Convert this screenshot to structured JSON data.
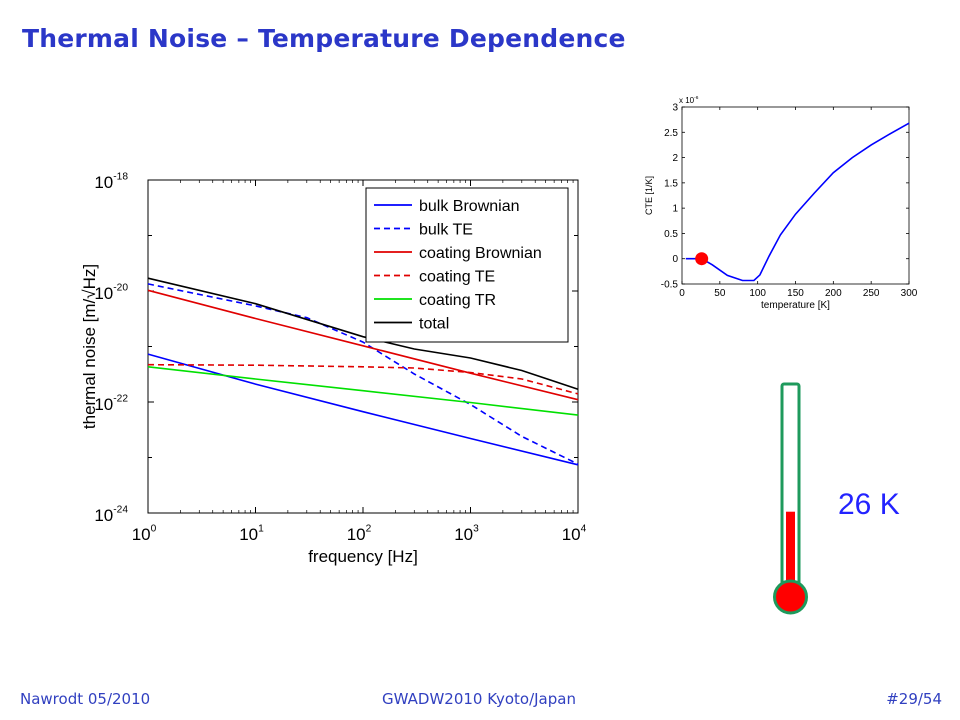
{
  "slide": {
    "title": "Thermal Noise – Temperature Dependence",
    "footer_left": "Nawrodt 05/2010",
    "footer_center": "GWADW2010 Kyoto/Japan",
    "footer_right": "#29/54",
    "temperature_label": "26 K"
  },
  "chart_data": [
    {
      "type": "line",
      "xlabel": "frequency [Hz]",
      "ylabel": "thermal noise [m/√Hz]",
      "x_scale": "log",
      "y_scale": "log",
      "xlim": [
        1,
        10000
      ],
      "ylim": [
        1e-24,
        1e-18
      ],
      "x_ticks": [
        {
          "value": 1,
          "base": "10",
          "exp": "0"
        },
        {
          "value": 10,
          "base": "10",
          "exp": "1"
        },
        {
          "value": 100,
          "base": "10",
          "exp": "2"
        },
        {
          "value": 1000,
          "base": "10",
          "exp": "3"
        },
        {
          "value": 10000,
          "base": "10",
          "exp": "4"
        }
      ],
      "y_ticks": [
        {
          "value": 1e-24,
          "base": "10",
          "exp": "-24"
        },
        {
          "value": 1e-22,
          "base": "10",
          "exp": "-22"
        },
        {
          "value": 1e-20,
          "base": "10",
          "exp": "-20"
        },
        {
          "value": 1e-18,
          "base": "10",
          "exp": "-18"
        }
      ],
      "legend_position": "top-right",
      "series": [
        {
          "name": "bulk Brownian",
          "color": "#0000ff",
          "dash": "solid",
          "x": [
            1,
            10,
            100,
            1000,
            10000
          ],
          "y": [
            7.3e-22,
            2.1e-22,
            6.7e-23,
            2.2e-23,
            7.4e-24
          ]
        },
        {
          "name": "bulk TE",
          "color": "#0000ff",
          "dash": "dashed",
          "x": [
            1,
            10,
            30,
            100,
            300,
            1000,
            3000,
            10000
          ],
          "y": [
            1.34e-20,
            5.4e-21,
            3.3e-21,
            1.2e-21,
            3.2e-22,
            9e-23,
            2.4e-23,
            7.6e-24
          ]
        },
        {
          "name": "coating Brownian",
          "color": "#e00000",
          "dash": "solid",
          "x": [
            1,
            10,
            100,
            1000,
            10000
          ],
          "y": [
            1.03e-20,
            3.2e-21,
            1.03e-21,
            3.3e-22,
            1.1e-22
          ]
        },
        {
          "name": "coating TE",
          "color": "#e00000",
          "dash": "dashed",
          "x": [
            1,
            10,
            100,
            300,
            1000,
            3000,
            10000
          ],
          "y": [
            4.7e-22,
            4.6e-22,
            4.3e-22,
            4.1e-22,
            3.4e-22,
            2.6e-22,
            1.4e-22
          ]
        },
        {
          "name": "coating TR",
          "color": "#00e000",
          "dash": "solid",
          "x": [
            1,
            10,
            100,
            1000,
            10000
          ],
          "y": [
            4.3e-22,
            2.6e-22,
            1.6e-22,
            9.8e-23,
            5.8e-23
          ]
        },
        {
          "name": "total",
          "color": "#000000",
          "dash": "solid",
          "x": [
            1,
            10,
            100,
            300,
            1000,
            3000,
            10000
          ],
          "y": [
            1.7e-20,
            5.9e-21,
            1.5e-21,
            9e-22,
            6.2e-22,
            3.7e-22,
            1.7e-22
          ]
        }
      ]
    },
    {
      "type": "line",
      "xlabel": "temperature [K]",
      "ylabel": "CTE [1/K]",
      "y_multiplier": "x 10",
      "y_multiplier_exp": "-6",
      "xlim": [
        0,
        300
      ],
      "ylim": [
        -0.5,
        3
      ],
      "x_ticks": [
        0,
        50,
        100,
        150,
        200,
        250,
        300
      ],
      "y_ticks": [
        -0.5,
        0,
        0.5,
        1,
        1.5,
        2,
        2.5,
        3
      ],
      "y_tick_labels": [
        "-0.5",
        "0",
        "0.5",
        "1",
        "1.5",
        "2",
        "2.5",
        "3"
      ],
      "series": [
        {
          "name": "",
          "color": "#0000ff",
          "x": [
            5,
            20,
            26,
            40,
            60,
            80,
            95,
            103,
            115,
            130,
            150,
            175,
            200,
            225,
            250,
            275,
            300
          ],
          "y": [
            0.0,
            0.0,
            0.0,
            -0.12,
            -0.33,
            -0.43,
            -0.43,
            -0.32,
            0.05,
            0.47,
            0.88,
            1.3,
            1.7,
            2.0,
            2.25,
            2.47,
            2.68
          ]
        }
      ],
      "marker": {
        "x": 26,
        "y": 0,
        "color": "#ff0000"
      }
    }
  ],
  "thermometer": {
    "level_fraction": 0.3,
    "fill_color": "#ff0000",
    "frame_color": "#1e9a5c"
  }
}
